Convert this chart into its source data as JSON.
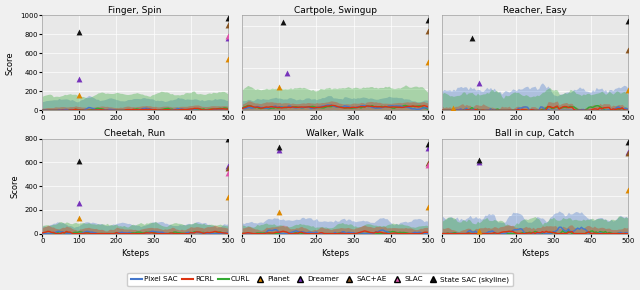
{
  "subplots": [
    {
      "title": "Finger, Spin",
      "ylim": [
        0,
        1000
      ],
      "yticks": [
        0,
        200,
        400,
        600,
        800,
        1000
      ],
      "row": 0,
      "col": 0
    },
    {
      "title": "Cartpole, Swingup",
      "ylim": [
        0,
        900
      ],
      "yticks": [
        0,
        200,
        400,
        600,
        800
      ],
      "row": 0,
      "col": 1
    },
    {
      "title": "Reacher, Easy",
      "ylim": [
        0,
        1000
      ],
      "yticks": [
        0,
        200,
        400,
        600,
        800,
        1000
      ],
      "row": 0,
      "col": 2
    },
    {
      "title": "Cheetah, Run",
      "ylim": [
        0,
        800
      ],
      "yticks": [
        0,
        200,
        400,
        600,
        800
      ],
      "row": 1,
      "col": 0
    },
    {
      "title": "Walker, Walk",
      "ylim": [
        0,
        1000
      ],
      "yticks": [
        0,
        200,
        400,
        600,
        800,
        1000
      ],
      "row": 1,
      "col": 1
    },
    {
      "title": "Ball in cup, Catch",
      "ylim": [
        0,
        1000
      ],
      "yticks": [
        0,
        200,
        400,
        600,
        800,
        1000
      ],
      "row": 1,
      "col": 2
    }
  ],
  "colors": {
    "pixel_sac": "#4477CC",
    "rcrl": "#DD3311",
    "curl": "#33AA33",
    "planet": "#DD8800",
    "dreamer": "#7733BB",
    "sac_ae": "#885522",
    "slac": "#DD55AA",
    "state_sac": "#111111"
  },
  "bg_color": "#e8e8e8",
  "xlabel": "Ksteps",
  "ylabel": "Score"
}
